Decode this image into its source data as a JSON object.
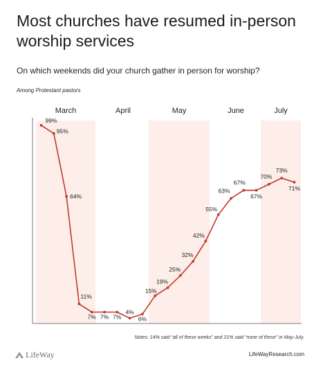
{
  "header": {
    "title": "Most churches have resumed in-person worship services",
    "question": "On which weekends did your church gather in person for worship?",
    "subset": "Among Protestant pastors"
  },
  "footer": {
    "notes": "Notes: 14% said “all of these weeks” and 21% said “none of these” in May-July.",
    "brand": "LifeWay",
    "site": "LifeWayResearch.com"
  },
  "colors": {
    "line": "#c0392b",
    "shade": "#fdeeea",
    "axis": "#555555"
  },
  "chart_data": {
    "type": "line",
    "months": [
      "March",
      "April",
      "May",
      "June",
      "July"
    ],
    "shaded_months": [
      "March",
      "May",
      "July"
    ],
    "unit": "%",
    "ylim": [
      0,
      100
    ],
    "series": [
      {
        "values": [
          99,
          95,
          64,
          11,
          7,
          7,
          7,
          4,
          6,
          15,
          19,
          25,
          32,
          42,
          55,
          63,
          67,
          67,
          70,
          73,
          71
        ]
      }
    ]
  }
}
